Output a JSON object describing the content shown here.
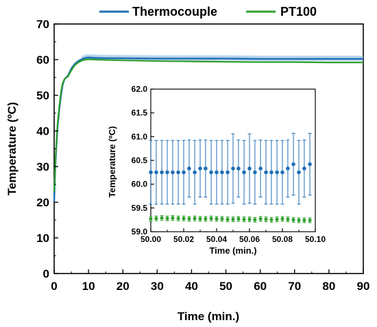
{
  "chart_data": [
    {
      "type": "line",
      "xlabel": "Time (min.)",
      "ylabel": "Temperature (ºC)",
      "xlim": [
        0,
        90
      ],
      "ylim": [
        0,
        70
      ],
      "xticks": [
        "0",
        "10",
        "20",
        "30",
        "40",
        "50",
        "60",
        "70",
        "80",
        "90"
      ],
      "yticks": [
        "0",
        "10",
        "20",
        "30",
        "40",
        "50",
        "60",
        "70"
      ],
      "legend_position": "top",
      "series": [
        {
          "name": "Thermocouple",
          "color": "#1f6eb5",
          "x": [
            0,
            0.3,
            0.6,
            1,
            1.5,
            2,
            2.5,
            3,
            3.5,
            4,
            5,
            6,
            7,
            8,
            9,
            10,
            12,
            15,
            20,
            30,
            40,
            50,
            60,
            70,
            80,
            90
          ],
          "y": [
            20,
            29,
            35,
            41,
            46,
            50,
            53,
            54.5,
            55,
            55.5,
            57.5,
            58.8,
            59.6,
            60.1,
            60.5,
            60.6,
            60.5,
            60.4,
            60.4,
            60.3,
            60.3,
            60.3,
            60.2,
            60.2,
            60.2,
            60.2
          ]
        },
        {
          "name": "PT100",
          "color": "#2ea02c",
          "x": [
            0,
            0.3,
            0.6,
            1,
            1.5,
            2,
            2.5,
            3,
            3.5,
            4,
            5,
            6,
            7,
            8,
            9,
            10,
            12,
            15,
            20,
            30,
            40,
            50,
            60,
            70,
            80,
            90
          ],
          "y": [
            23,
            30,
            36,
            42,
            47,
            51,
            53.5,
            54.5,
            55,
            55.2,
            57,
            58.4,
            59.2,
            59.7,
            60,
            60.1,
            60,
            59.9,
            59.8,
            59.6,
            59.5,
            59.4,
            59.3,
            59.3,
            59.2,
            59.2
          ]
        }
      ]
    },
    {
      "type": "scatter",
      "xlabel": "Time (min.)",
      "ylabel": "Temperature (ºC)",
      "xlim": [
        50.0,
        50.1
      ],
      "ylim": [
        59.0,
        62.0
      ],
      "xticks": [
        "50.00",
        "50.02",
        "50.04",
        "50.06",
        "50.08",
        "50.10"
      ],
      "yticks": [
        "59.0",
        "59.5",
        "60.0",
        "60.5",
        "61.0",
        "61.5",
        "62.0"
      ],
      "series": [
        {
          "name": "Thermocouple",
          "color": "#1f6eb5",
          "x": [
            50.0,
            50.0033,
            50.0067,
            50.01,
            50.0133,
            50.0167,
            50.02,
            50.0233,
            50.0267,
            50.03,
            50.0333,
            50.0367,
            50.04,
            50.0433,
            50.0467,
            50.05,
            50.0533,
            50.0567,
            50.06,
            50.0633,
            50.0667,
            50.07,
            50.0733,
            50.0767,
            50.08,
            50.0833,
            50.0867,
            50.09,
            50.0933,
            50.0967
          ],
          "y": [
            60.25,
            60.25,
            60.25,
            60.25,
            60.25,
            60.25,
            60.25,
            60.33,
            60.25,
            60.33,
            60.33,
            60.25,
            60.25,
            60.25,
            60.25,
            60.33,
            60.33,
            60.25,
            60.33,
            60.25,
            60.33,
            60.25,
            60.25,
            60.25,
            60.25,
            60.33,
            60.42,
            60.25,
            60.33,
            60.42
          ],
          "error": [
            0.67,
            0.67,
            0.67,
            0.67,
            0.67,
            0.67,
            0.67,
            0.6,
            0.67,
            0.6,
            0.6,
            0.67,
            0.67,
            0.67,
            0.67,
            0.73,
            0.6,
            0.67,
            0.73,
            0.67,
            0.6,
            0.67,
            0.67,
            0.67,
            0.67,
            0.6,
            0.65,
            0.67,
            0.6,
            0.65
          ]
        },
        {
          "name": "PT100",
          "color": "#2ea02c",
          "x": [
            50.0,
            50.0033,
            50.0067,
            50.01,
            50.0133,
            50.0167,
            50.02,
            50.0233,
            50.0267,
            50.03,
            50.0333,
            50.0367,
            50.04,
            50.0433,
            50.0467,
            50.05,
            50.0533,
            50.0567,
            50.06,
            50.0633,
            50.0667,
            50.07,
            50.0733,
            50.0767,
            50.08,
            50.0833,
            50.0867,
            50.09,
            50.0933,
            50.0967
          ],
          "y": [
            59.27,
            59.28,
            59.29,
            59.28,
            59.29,
            59.28,
            59.28,
            59.27,
            59.28,
            59.27,
            59.27,
            59.28,
            59.27,
            59.27,
            59.26,
            59.26,
            59.27,
            59.26,
            59.26,
            59.25,
            59.27,
            59.26,
            59.25,
            59.26,
            59.27,
            59.26,
            59.25,
            59.24,
            59.24,
            59.24
          ],
          "error": [
            0.05,
            0.05,
            0.05,
            0.05,
            0.05,
            0.05,
            0.05,
            0.05,
            0.05,
            0.05,
            0.05,
            0.05,
            0.05,
            0.05,
            0.05,
            0.05,
            0.05,
            0.05,
            0.05,
            0.05,
            0.05,
            0.05,
            0.05,
            0.05,
            0.05,
            0.05,
            0.05,
            0.05,
            0.05,
            0.05
          ]
        }
      ]
    }
  ]
}
